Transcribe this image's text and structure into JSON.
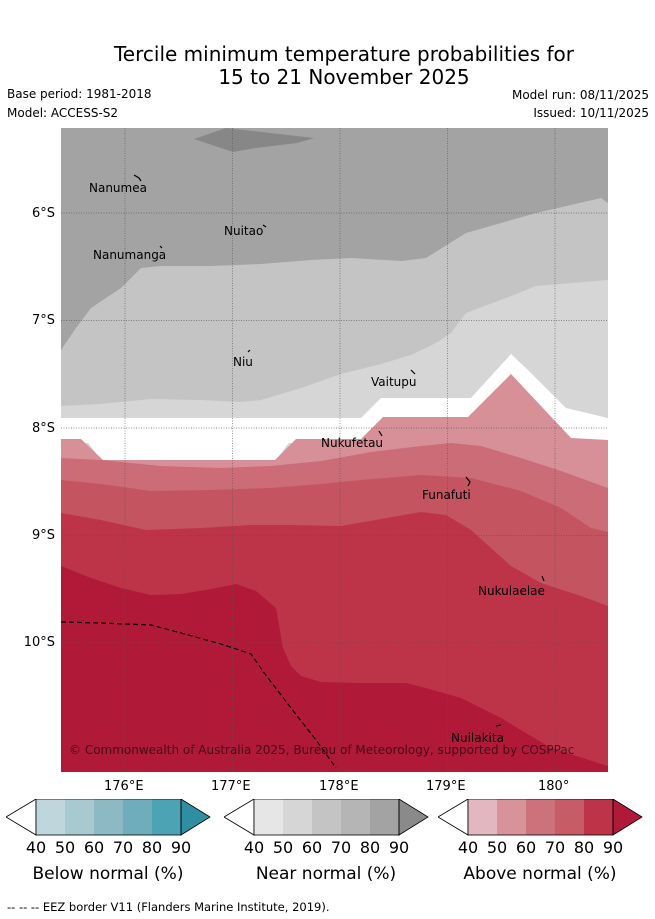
{
  "title": {
    "line1": "Tercile minimum temperature probabilities for",
    "line2": "15 to 21 November 2025"
  },
  "meta": {
    "base_period": "Base period: 1981-2018",
    "model": "Model: ACCESS-S2",
    "model_run": "Model run: 08/11/2025",
    "issued": "Issued: 10/11/2025"
  },
  "axes": {
    "y_ticks": [
      "6°S",
      "7°S",
      "8°S",
      "9°S",
      "10°S"
    ],
    "x_ticks": [
      "176°E",
      "177°E",
      "178°E",
      "179°E",
      "180°"
    ]
  },
  "places": [
    "Nanumea",
    "Nuitao",
    "Nanumanga",
    "Niu",
    "Vaitupu",
    "Nukufetau",
    "Funafuti",
    "Nukulaelae",
    "Nuilakita"
  ],
  "copyright": "© Commonwealth of Australia 2025, Bureau of Meteorology, supported by COSPPac",
  "colorbars": [
    {
      "label": "Below normal (%)",
      "ticks": [
        "40",
        "50",
        "60",
        "70",
        "80",
        "90"
      ],
      "colors": [
        "#bfd6dc",
        "#a8c9d0",
        "#8cb9c4",
        "#6fadbc",
        "#4ca3b4",
        "#2e8fa3"
      ]
    },
    {
      "label": "Near normal (%)",
      "ticks": [
        "40",
        "50",
        "60",
        "70",
        "80",
        "90"
      ],
      "colors": [
        "#e6e6e6",
        "#d6d6d6",
        "#c4c4c4",
        "#b5b5b5",
        "#a3a3a3",
        "#8a8a8a"
      ]
    },
    {
      "label": "Above normal (%)",
      "ticks": [
        "40",
        "50",
        "60",
        "70",
        "80",
        "90"
      ],
      "colors": [
        "#e2b7bf",
        "#d89299",
        "#cd727b",
        "#c55c66",
        "#bd3449",
        "#b01a38"
      ]
    }
  ],
  "footnote": "--  --  -- EEZ border V11 (Flanders Marine Institute, 2019)."
}
